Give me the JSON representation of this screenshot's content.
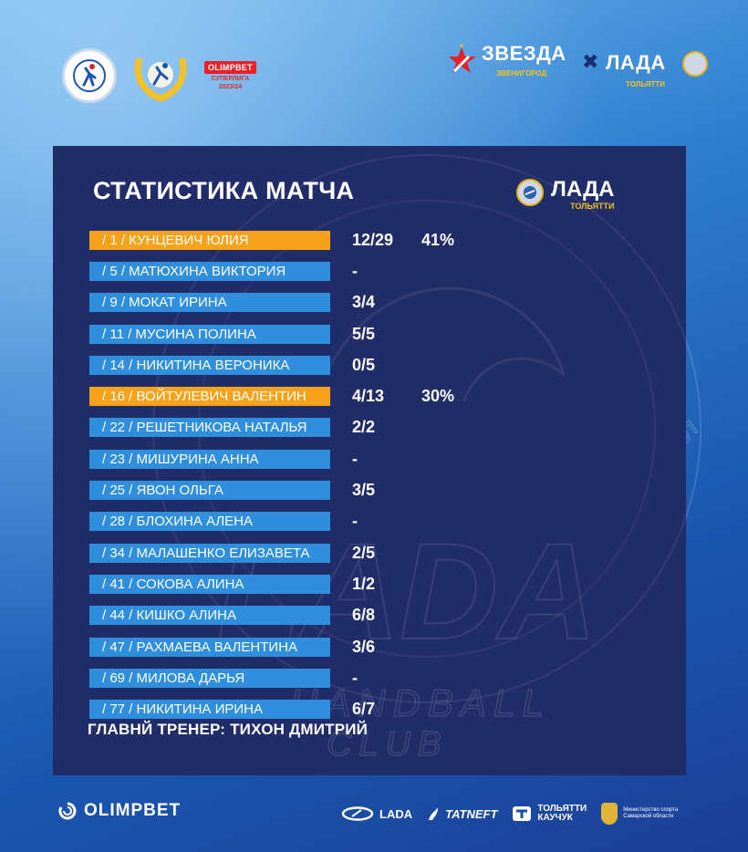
{
  "header": {
    "federation_logo": "russian-handball-federation-logo",
    "league_logo": "handball-wreath-logo",
    "sponsor": "OLIMPBET",
    "league_line1": "СУПЕРЛИГА",
    "league_line2": "2023/24"
  },
  "match": {
    "home": {
      "name": "ЗВЕЗДА",
      "city": "ЗВЕНИГОРОД"
    },
    "away": {
      "name": "ЛАДА",
      "city": "ТОЛЬЯТТИ"
    },
    "separator": "✖"
  },
  "watermark": {
    "ring_text": "• ГАНДБОЛЬНЫЙ КЛУБ ЛАДА •",
    "big_letters": "LADA",
    "sub1": "HANDBALL",
    "sub2": "CLUB"
  },
  "panel": {
    "title": "СТАТИСТИКА МАТЧА",
    "team": "ЛАДА",
    "city": "ТОЛЬЯТТИ",
    "coach": "ГЛАВНЙ ТРЕНЕР: ТИХОН ДМИТРИЙ",
    "players": [
      {
        "label": "/ 1 / КУНЦЕВИЧ ЮЛИЯ",
        "saves": "12/29",
        "pct": "41%",
        "highlight": true
      },
      {
        "label": "/ 5 / МАТЮХИНА ВИКТОРИЯ",
        "saves": "-",
        "pct": "",
        "highlight": false
      },
      {
        "label": "/  9 / МОКАТ ИРИНА",
        "saves": "3/4",
        "pct": "",
        "highlight": false
      },
      {
        "label": "/ 11 / МУСИНА ПОЛИНА",
        "saves": "5/5",
        "pct": "",
        "highlight": false
      },
      {
        "label": "/ 14 / НИКИТИНА ВЕРОНИКА",
        "saves": "0/5",
        "pct": "",
        "highlight": false
      },
      {
        "label": "/ 16 / ВОЙТУЛЕВИЧ ВАЛЕНТИН",
        "saves": "4/13",
        "pct": "30%",
        "highlight": true
      },
      {
        "label": "/ 22 / РЕШЕТНИКОВА НАТАЛЬЯ",
        "saves": "2/2",
        "pct": "",
        "highlight": false
      },
      {
        "label": "/ 23 / МИШУРИНА АННА",
        "saves": "-",
        "pct": "",
        "highlight": false
      },
      {
        "label": "/ 25 / ЯВОН ОЛЬГА",
        "saves": "3/5",
        "pct": "",
        "highlight": false
      },
      {
        "label": "/ 28 / БЛОХИНА АЛЕНА",
        "saves": "-",
        "pct": "",
        "highlight": false
      },
      {
        "label": "/ 34 / МАЛАШЕНКО ЕЛИЗАВЕТА",
        "saves": "2/5",
        "pct": "",
        "highlight": false
      },
      {
        "label": "/ 41 / СОКОВА АЛИНА",
        "saves": "1/2",
        "pct": "",
        "highlight": false
      },
      {
        "label": "/ 44 / КИШКО АЛИНА",
        "saves": "6/8",
        "pct": "",
        "highlight": false
      },
      {
        "label": "/ 47 / РАХМАЕВА ВАЛЕНТИНА",
        "saves": "3/6",
        "pct": "",
        "highlight": false
      },
      {
        "label": "/ 69 / МИЛОВА ДАРЬЯ",
        "saves": "-",
        "pct": "",
        "highlight": false
      },
      {
        "label": "/ 77 / НИКИТИНА ИРИНА",
        "saves": "6/7",
        "pct": "",
        "highlight": false
      }
    ]
  },
  "footer": {
    "main_sponsor": "OLIMPBET",
    "partners": {
      "lada": "LADA",
      "tatneft": "TATNEFT",
      "tk_line1": "ТОЛЬЯТТИ",
      "tk_line2": "КАУЧУК",
      "ministry_line1": "Министерство спорта",
      "ministry_line2": "Самарской области"
    }
  },
  "colors": {
    "panel_bg": "#202d68",
    "player_bar": "#2f8fdc",
    "highlight_bar": "#f6a31b",
    "accent_yellow": "#f7c21d",
    "star_red": "#e8202a"
  }
}
